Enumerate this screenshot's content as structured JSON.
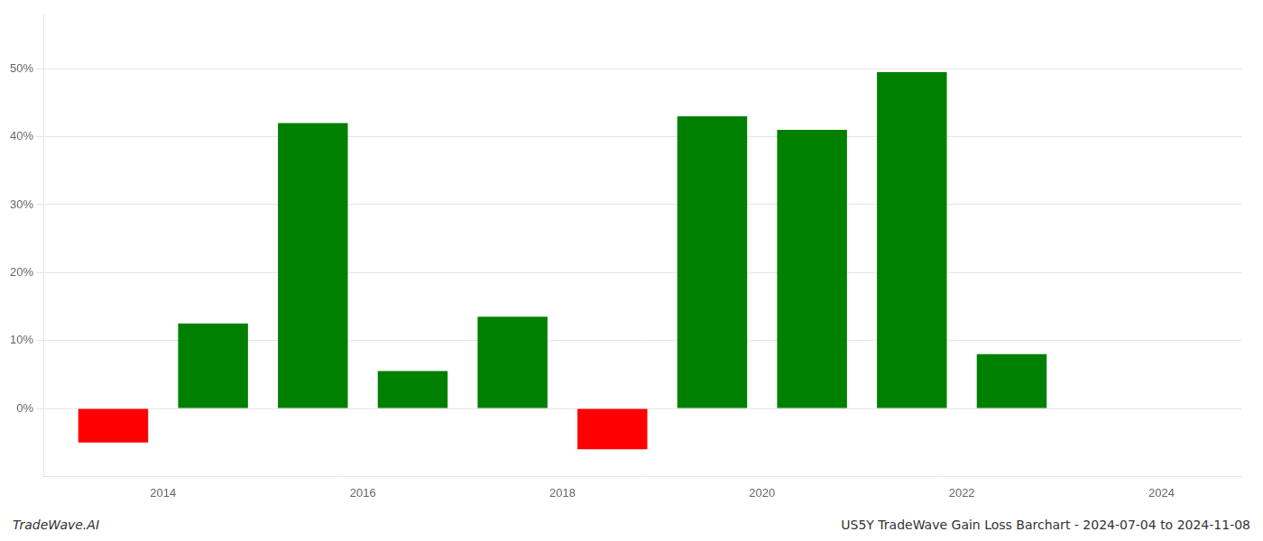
{
  "chart_data": {
    "type": "bar",
    "x": [
      2013.5,
      2014.5,
      2015.5,
      2016.5,
      2017.5,
      2018.5,
      2019.5,
      2020.5,
      2021.5,
      2022.5,
      2023.5
    ],
    "values": [
      -0.05,
      0.125,
      0.42,
      0.055,
      0.135,
      -0.06,
      0.43,
      0.41,
      0.495,
      0.08,
      0.0
    ],
    "colors": [
      "#ff0000",
      "#008000",
      "#008000",
      "#008000",
      "#008000",
      "#ff0000",
      "#008000",
      "#008000",
      "#008000",
      "#008000",
      "#008000"
    ],
    "xlim": [
      2012.8,
      2024.8
    ],
    "xticks": [
      2014,
      2016,
      2018,
      2020,
      2022,
      2024
    ],
    "ylim": [
      -0.1,
      0.58
    ],
    "yticks": [
      {
        "value": 0.0,
        "label": "0%"
      },
      {
        "value": 0.1,
        "label": "10%"
      },
      {
        "value": 0.2,
        "label": "20%"
      },
      {
        "value": 0.3,
        "label": "30%"
      },
      {
        "value": 0.4,
        "label": "40%"
      },
      {
        "value": 0.5,
        "label": "50%"
      }
    ],
    "grid": true,
    "annotations": [
      "TradeWave.AI",
      "US5Y TradeWave Gain Loss Barchart - 2024-07-04 to 2024-11-08"
    ]
  }
}
